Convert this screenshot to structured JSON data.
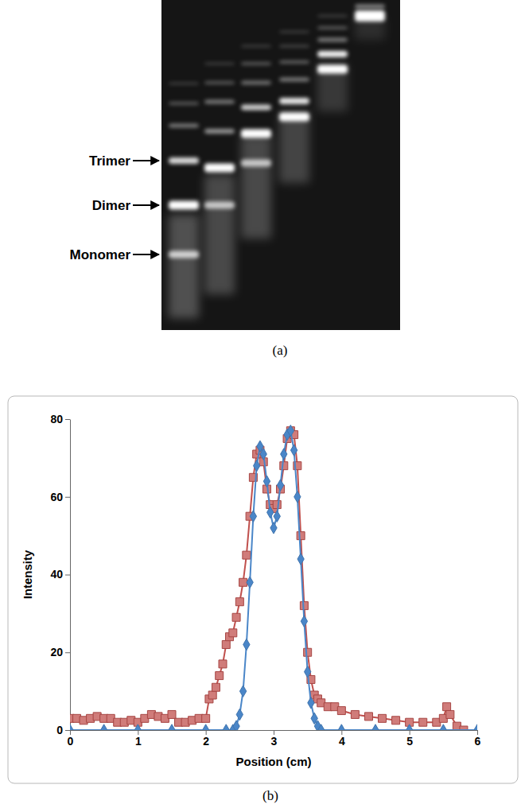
{
  "chart_data": [
    {
      "type": "gel",
      "caption": "(a)",
      "annotations": [
        {
          "text": "Trimer"
        },
        {
          "text": "Dimer"
        },
        {
          "text": "Monomer"
        }
      ]
    },
    {
      "type": "scatter",
      "caption": "(b)",
      "x_label": "Position (cm)",
      "y_label": "Intensity",
      "xlim": [
        0,
        6
      ],
      "xticks": [
        0,
        1,
        2,
        3,
        4,
        5,
        6
      ],
      "ylim": [
        0,
        80
      ],
      "yticks": [
        0,
        20,
        40,
        60,
        80
      ],
      "grid": false,
      "series": [
        {
          "color": "#c0504d",
          "marker": "square",
          "line_style": "solid",
          "x": [
            0,
            0.1,
            0.2,
            0.3,
            0.4,
            0.5,
            0.6,
            0.7,
            0.8,
            0.9,
            1,
            1.1,
            1.2,
            1.3,
            1.4,
            1.5,
            1.6,
            1.7,
            1.8,
            1.9,
            2.0,
            2.05,
            2.1,
            2.15,
            2.2,
            2.25,
            2.3,
            2.35,
            2.4,
            2.45,
            2.5,
            2.55,
            2.6,
            2.65,
            2.7,
            2.75,
            2.8,
            2.85,
            2.9,
            2.95,
            3.0,
            3.05,
            3.1,
            3.15,
            3.2,
            3.25,
            3.3,
            3.35,
            3.4,
            3.45,
            3.5,
            3.55,
            3.6,
            3.65,
            3.7,
            3.8,
            3.9,
            4.0,
            4.2,
            4.4,
            4.6,
            4.8,
            5.0,
            5.2,
            5.4,
            5.5,
            5.55,
            5.6,
            5.7,
            5.8
          ],
          "values": [
            3,
            3,
            2.5,
            3,
            3.5,
            3,
            3,
            2,
            2,
            2.5,
            2,
            3,
            4,
            3.5,
            3,
            4,
            2,
            2,
            2.5,
            3,
            3,
            8,
            9,
            11,
            14,
            17,
            22,
            24,
            25,
            29,
            33,
            38,
            45,
            55,
            65,
            71,
            72,
            69,
            62,
            58,
            57,
            58,
            62,
            68,
            75,
            77,
            76,
            68,
            50,
            32,
            20,
            13,
            9,
            8,
            7,
            6,
            6,
            5,
            4,
            3.5,
            3,
            2.5,
            2,
            2,
            2,
            3,
            6,
            4,
            1,
            0
          ]
        },
        {
          "color": "#4a86c8",
          "marker": "diamond",
          "line_style": "solid",
          "x": [
            0,
            0.5,
            1,
            1.5,
            2,
            2.3,
            2.4,
            2.45,
            2.5,
            2.55,
            2.6,
            2.65,
            2.7,
            2.75,
            2.8,
            2.85,
            2.9,
            2.95,
            3.0,
            3.05,
            3.1,
            3.15,
            3.2,
            3.25,
            3.3,
            3.35,
            3.4,
            3.45,
            3.5,
            3.55,
            3.6,
            3.65,
            3.7,
            4,
            4.5,
            5,
            5.5,
            6
          ],
          "values": [
            0,
            0,
            0,
            0,
            0,
            0,
            0,
            1,
            4,
            10,
            22,
            38,
            55,
            68,
            73,
            71,
            64,
            56,
            52,
            55,
            63,
            71,
            76,
            77,
            72,
            60,
            44,
            28,
            15,
            7,
            3,
            1,
            0,
            0,
            0,
            0,
            0,
            0
          ]
        }
      ]
    }
  ]
}
